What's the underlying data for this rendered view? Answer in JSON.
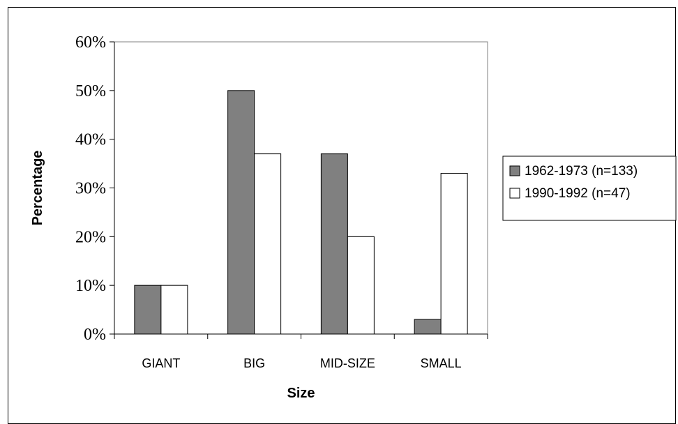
{
  "chart_data": {
    "type": "bar",
    "title": "",
    "xlabel": "Size",
    "ylabel": "Percentage",
    "categories": [
      "GIANT",
      "BIG",
      "MID-SIZE",
      "SMALL"
    ],
    "ylim": [
      0,
      60
    ],
    "yticks": [
      0,
      10,
      20,
      30,
      40,
      50,
      60
    ],
    "ytick_labels": [
      "0%",
      "10%",
      "20%",
      "30%",
      "40%",
      "50%",
      "60%"
    ],
    "grid": false,
    "legend_position": "right",
    "series": [
      {
        "name": "1962-1973 (n=133)",
        "values": [
          10,
          50,
          37,
          3
        ],
        "color": "#808080"
      },
      {
        "name": "1990-1992 (n=47)",
        "values": [
          10,
          37,
          20,
          33
        ],
        "color": "#ffffff"
      }
    ]
  }
}
